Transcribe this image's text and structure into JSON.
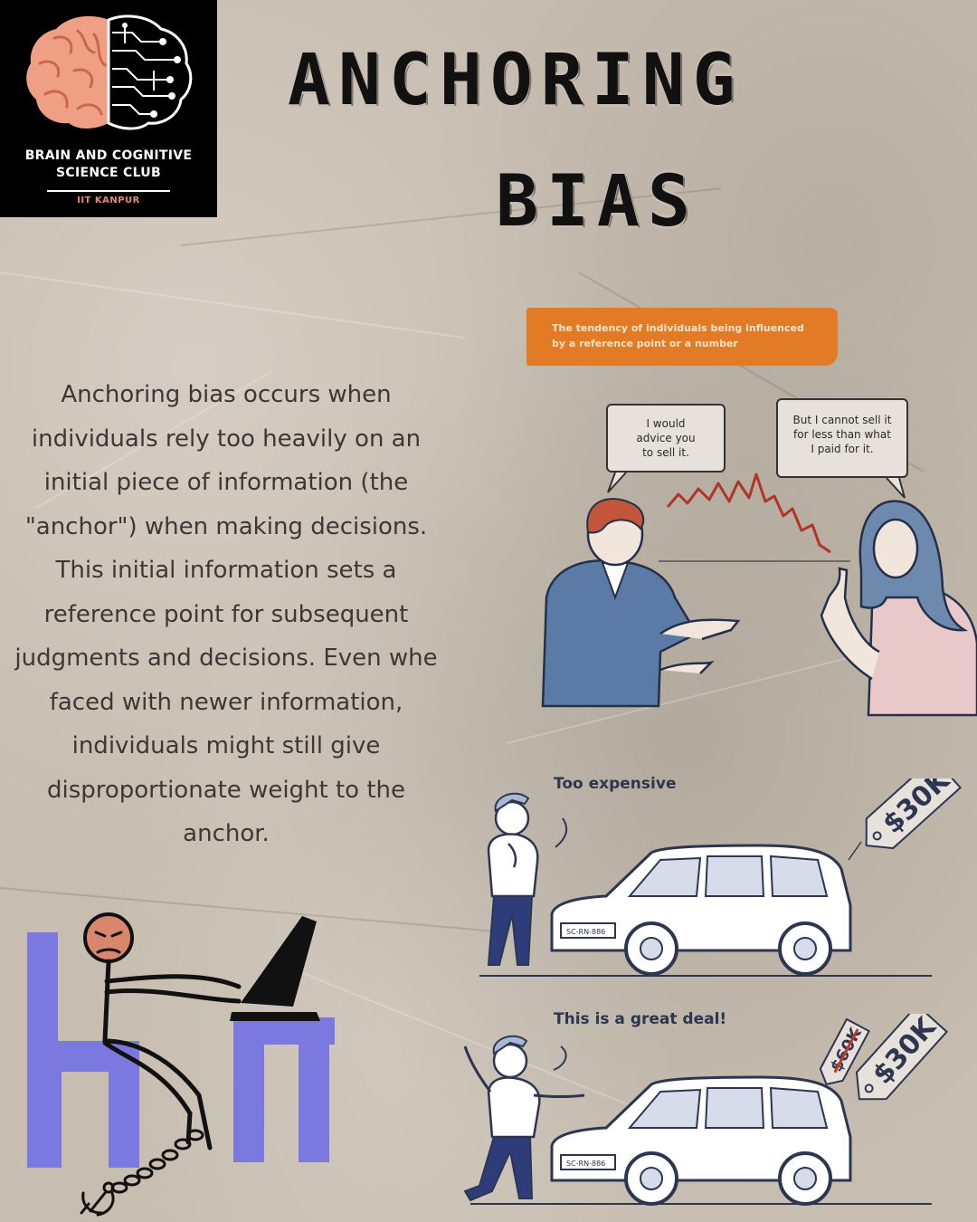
{
  "logo": {
    "line1": "BRAIN AND COGNITIVE",
    "line2": "SCIENCE CLUB",
    "line3": "IIT KANPUR"
  },
  "title": {
    "line1": "ANCHORING",
    "line2": "BIAS"
  },
  "definition_box": {
    "line1": "The tendency of individuals being influenced",
    "line2": "by a reference point or a number",
    "color": "#e27a26"
  },
  "body_lines": [
    "Anchoring bias occurs when",
    "individuals rely too heavily on an",
    "initial piece of information (the",
    "\"anchor\") when making decisions.",
    "This initial information sets a",
    "reference point for subsequent",
    "judgments and decisions. Even whe",
    "faced with newer information,",
    "individuals might still give",
    "disproportionate weight to the",
    "anchor."
  ],
  "conversation": {
    "advisor_bubble": [
      "I would",
      "advice you",
      "to sell it."
    ],
    "seller_bubble": [
      "But I cannot sell it",
      "for less than what",
      "I paid for it."
    ]
  },
  "car_scene_1": {
    "caption": "Too expensive",
    "price_tag": "$30K"
  },
  "car_scene_2": {
    "caption": "This is a great deal!",
    "old_price": "$60K",
    "price_tag": "$30K"
  },
  "plate_text": "SC-RN-886",
  "colors": {
    "paper": "#c7bdb0",
    "chair": "#7b78e0",
    "skin": "#d9876c",
    "ink": "#2d3650"
  }
}
